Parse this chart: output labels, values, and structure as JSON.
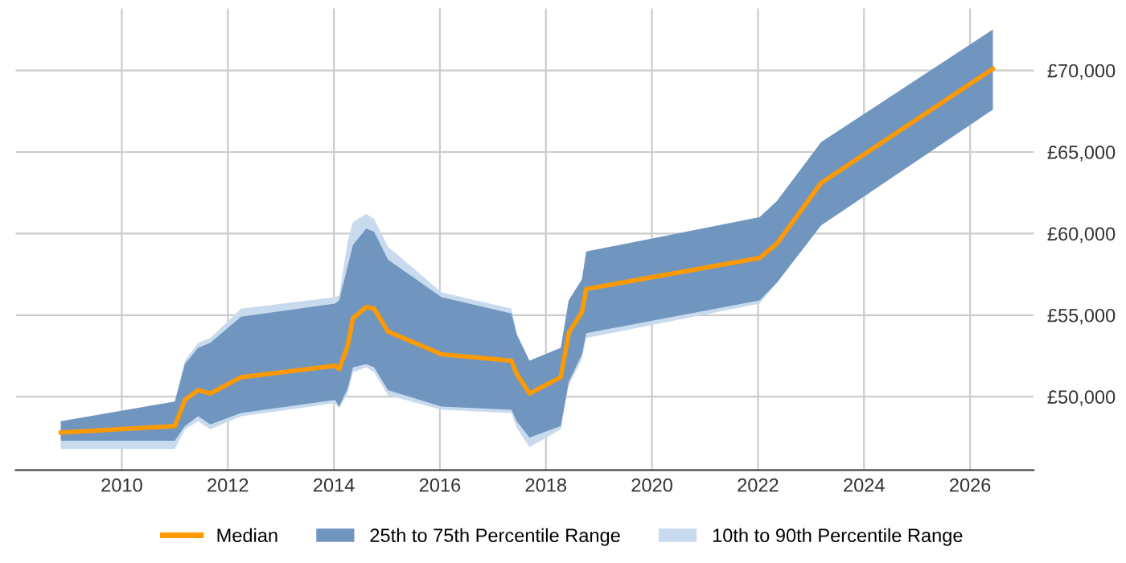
{
  "chart_data": {
    "type": "line",
    "x": [
      2008.85,
      2011.0,
      2011.19,
      2011.44,
      2011.67,
      2012.25,
      2014.02,
      2014.1,
      2014.26,
      2014.36,
      2014.61,
      2014.76,
      2015.02,
      2016.03,
      2017.35,
      2017.45,
      2017.69,
      2018.28,
      2018.43,
      2018.68,
      2018.76,
      2022.03,
      2022.36,
      2023.19,
      2026.43
    ],
    "series": [
      {
        "name": "Median",
        "color": "#ff9900",
        "values": [
          47800,
          48200,
          49800,
          50400,
          50200,
          51200,
          51900,
          51700,
          53100,
          54800,
          55500,
          55400,
          54000,
          52600,
          52200,
          51400,
          50200,
          51200,
          53900,
          55200,
          56600,
          58500,
          59400,
          63100,
          70100
        ]
      },
      {
        "name": "25th to 75th Percentile Range",
        "type": "area",
        "color": "#7096c0",
        "values": [
          null,
          null,
          null,
          null,
          null,
          null,
          null,
          null,
          null,
          null,
          null,
          null,
          null,
          null,
          null,
          null,
          null,
          null,
          null,
          null,
          null,
          null,
          null,
          null,
          null
        ],
        "lower": [
          47300,
          47300,
          48200,
          48800,
          48300,
          49000,
          49800,
          49400,
          50500,
          51800,
          52000,
          51800,
          50400,
          49400,
          49200,
          48500,
          47500,
          48200,
          50900,
          52600,
          53900,
          55900,
          57000,
          60500,
          67600
        ],
        "upper": [
          48500,
          49700,
          52000,
          53000,
          53300,
          54900,
          55700,
          55900,
          58000,
          59300,
          60300,
          60100,
          58400,
          56100,
          55100,
          53800,
          52200,
          53000,
          55900,
          57200,
          58900,
          61000,
          62000,
          65600,
          72500
        ]
      },
      {
        "name": "10th to 90th Percentile Range",
        "type": "area",
        "color": "#c8daee",
        "values": [
          null,
          null,
          null,
          null,
          null,
          null,
          null,
          null,
          null,
          null,
          null,
          null,
          null,
          null,
          null,
          null,
          null,
          null,
          null,
          null,
          null,
          null,
          null,
          null,
          null
        ],
        "lower": [
          46800,
          46800,
          48000,
          48500,
          48000,
          48800,
          49600,
          49300,
          50200,
          51500,
          51800,
          51500,
          50100,
          49200,
          49000,
          48100,
          46900,
          48000,
          50700,
          52300,
          53600,
          55700,
          57000,
          60500,
          67600
        ],
        "upper": [
          48500,
          49700,
          52200,
          53300,
          53600,
          55400,
          56100,
          56200,
          59500,
          60700,
          61200,
          60900,
          59200,
          56400,
          55400,
          53900,
          52200,
          53000,
          55900,
          57200,
          58900,
          61000,
          62000,
          65600,
          72500
        ]
      }
    ],
    "xlim": [
      2008.0,
      2027.2
    ],
    "xticks": [
      2010,
      2012,
      2014,
      2016,
      2018,
      2020,
      2022,
      2024,
      2026
    ],
    "ylim": [
      45500,
      73800
    ],
    "yticks": [
      {
        "value": 50000,
        "label": "£50,000"
      },
      {
        "value": 55000,
        "label": "£55,000"
      },
      {
        "value": 60000,
        "label": "£60,000"
      },
      {
        "value": 65000,
        "label": "£65,000"
      },
      {
        "value": 70000,
        "label": "£70,000"
      }
    ],
    "grid": true,
    "legend": "bottom"
  }
}
